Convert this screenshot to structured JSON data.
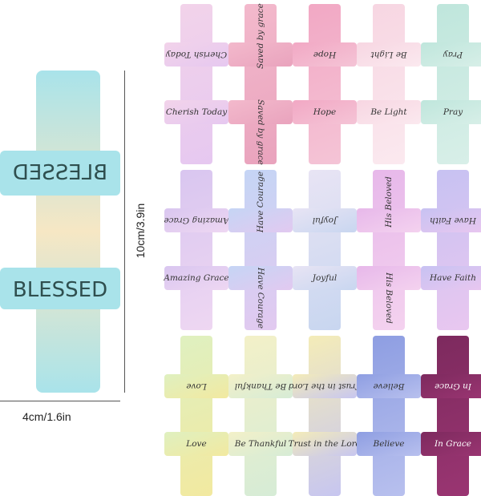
{
  "large_cross": {
    "top_text": "BLESSED",
    "bottom_text": "BLESSED",
    "color_a": "#a9e3ea",
    "color_b": "#f6e7c4"
  },
  "dimensions": {
    "height": "10cm/3.9in",
    "width": "4cm/1.6in"
  },
  "crosses": [
    {
      "text": "Cherish Today",
      "a": "#f2d3ea",
      "b": "#e6c8f0"
    },
    {
      "text": "Saved by grace",
      "a": "#f3b9cc",
      "b": "#e9a3bd"
    },
    {
      "text": "Hope",
      "a": "#f2a8c4",
      "b": "#f4c4d6"
    },
    {
      "text": "Be Light",
      "a": "#f7d6e2",
      "b": "#fbe9ef"
    },
    {
      "text": "Pray",
      "a": "#bfe6dc",
      "b": "#d8efe8"
    },
    {
      "text": "Amazing Grace",
      "a": "#d9c6f0",
      "b": "#eed7f2"
    },
    {
      "text": "Have Courage",
      "a": "#c5d5f5",
      "b": "#e2c9f0"
    },
    {
      "text": "Joyful",
      "a": "#e8e4f4",
      "b": "#c8d6f0"
    },
    {
      "text": "His Beloved",
      "a": "#e7b8ea",
      "b": "#f4d2ef"
    },
    {
      "text": "Have Faith",
      "a": "#c7c2f2",
      "b": "#e9c7f0"
    },
    {
      "text": "Love",
      "a": "#dff0c0",
      "b": "#f2e9a0"
    },
    {
      "text": "Be Thankful",
      "a": "#f3f0c8",
      "b": "#d6ecd6"
    },
    {
      "text": "Trust in the Lord",
      "a": "#f4ecb8",
      "b": "#c7c6f0"
    },
    {
      "text": "Believe",
      "a": "#8e9ee2",
      "b": "#b8c0ee"
    },
    {
      "text": "In Grace",
      "a": "#7d2a5e",
      "b": "#9a3572"
    }
  ]
}
